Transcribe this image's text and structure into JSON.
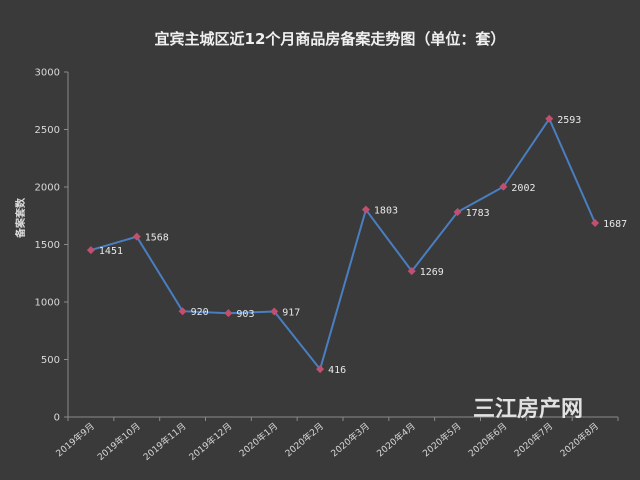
{
  "chart_data": {
    "type": "line",
    "title": "宜宾主城区近12个月商品房备案走势图（单位：套）",
    "xlabel": "",
    "ylabel": "备案套数",
    "categories": [
      "2019年9月",
      "2019年10月",
      "2019年11月",
      "2019年12月",
      "2020年1月",
      "2020年2月",
      "2020年3月",
      "2020年4月",
      "2020年5月",
      "2020年6月",
      "2020年7月",
      "2020年8月"
    ],
    "series": [
      {
        "values": [
          1451,
          1568,
          920,
          903,
          917,
          416,
          1803,
          1269,
          1783,
          2002,
          2593,
          1687
        ]
      }
    ],
    "ylim": [
      0,
      3000
    ],
    "yticks": [
      0,
      500,
      1000,
      1500,
      2000,
      2500,
      3000
    ],
    "grid": false,
    "legend": "none",
    "colors": {
      "line": "#4a7ec0",
      "marker": "#c0506e",
      "background": "#3a3a3a",
      "axis": "#8a8a8a"
    }
  },
  "watermark": "三江房产网"
}
